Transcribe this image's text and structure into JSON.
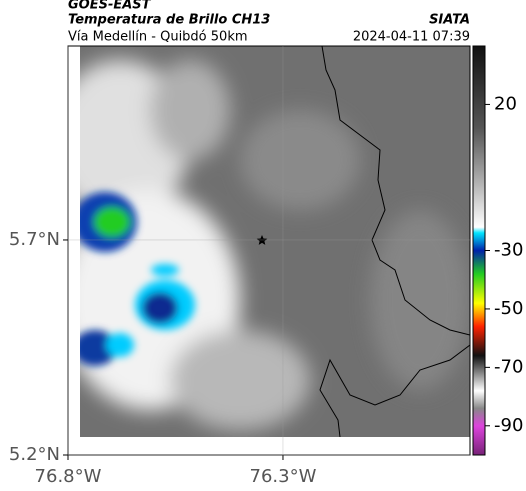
{
  "header": {
    "source": "GOES-EAST",
    "product": "Temperatura de Brillo CH13",
    "organization": "SIATA",
    "route": "Vía Medellín - Quibdó 50km",
    "timestamp": "2024-04-11 07:39"
  },
  "map": {
    "xlim": [
      -76.8,
      -75.865
    ],
    "ylim": [
      5.2,
      6.151
    ],
    "xticks": [
      {
        "value": -76.8,
        "label": "76.8°W"
      },
      {
        "value": -76.3,
        "label": "76.3°W"
      }
    ],
    "yticks": [
      {
        "value": 5.7,
        "label": "5.7°N"
      },
      {
        "value": 5.2,
        "label": "5.2°N"
      }
    ]
  },
  "colorbar": {
    "lim": [
      -100,
      40
    ],
    "ticks": [
      20,
      -30,
      -50,
      -70,
      -90
    ]
  }
}
